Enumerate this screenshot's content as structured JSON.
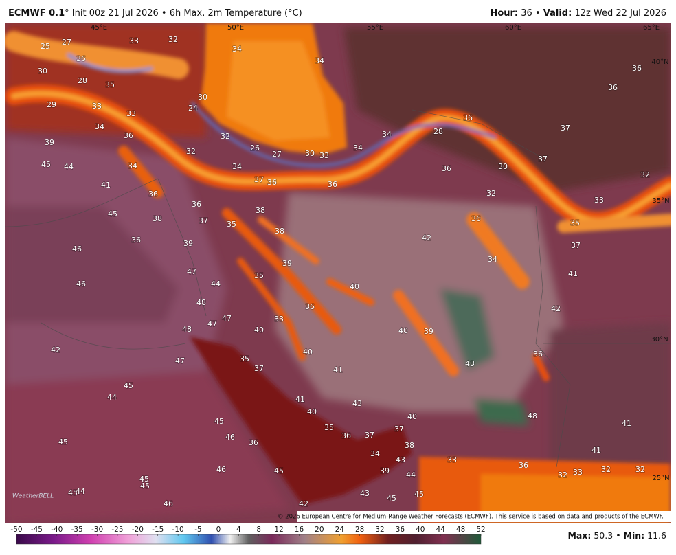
{
  "header": {
    "model": "ECMWF 0.1",
    "title": "° Init 00z 21 Jul 2026 • 6h Max. 2m Temperature (°C)",
    "hour_label": "Hour:",
    "hour_value": "36 •",
    "valid_label": "Valid:",
    "valid_value": "12z Wed 22 Jul 2026"
  },
  "map": {
    "grid_labels": [
      "45°E",
      "50°E",
      "55°E",
      "60°E",
      "65°E",
      "40°N",
      "35°N",
      "30°N",
      "25°N"
    ],
    "values": [
      25,
      27,
      33,
      32,
      34,
      34,
      36,
      36,
      30,
      36,
      28,
      35,
      29,
      33,
      33,
      24,
      30,
      34,
      36,
      32,
      28,
      36,
      37,
      34,
      39,
      32,
      26,
      27,
      30,
      33,
      34,
      45,
      44,
      34,
      34,
      36,
      30,
      37,
      32,
      41,
      37,
      36,
      36,
      32,
      33,
      36,
      36,
      45,
      38,
      37,
      35,
      38,
      36,
      35,
      38,
      42,
      46,
      36,
      39,
      37,
      39,
      34,
      47,
      41,
      46,
      35,
      44,
      40,
      48,
      36,
      42,
      47,
      47,
      33,
      48,
      40,
      40,
      39,
      42,
      40,
      36,
      47,
      35,
      37,
      41,
      43,
      45,
      44,
      41,
      43,
      40,
      48,
      40,
      41,
      45,
      46,
      35,
      36,
      37,
      37,
      36,
      38,
      45,
      41,
      34,
      43,
      33,
      36,
      46,
      45,
      39,
      44,
      32,
      33,
      32,
      32,
      45,
      45,
      45,
      44,
      43,
      45,
      45,
      46,
      42
    ]
  },
  "colorbar": {
    "ticks": [
      -50,
      -45,
      -40,
      -35,
      -30,
      -25,
      -20,
      -15,
      -10,
      -5,
      0,
      4,
      8,
      12,
      16,
      20,
      24,
      28,
      32,
      36,
      40,
      44,
      48,
      52
    ]
  },
  "footer": {
    "max_label": "Max:",
    "max": 50.3,
    "separator": "•",
    "min_label": "Min:",
    "min": 11.6
  },
  "credit": "© 2026 European Centre for Medium-Range Weather Forecasts (ECMWF). This service is based on data and products of the ECMWF.",
  "logo": "WeatherBELL"
}
